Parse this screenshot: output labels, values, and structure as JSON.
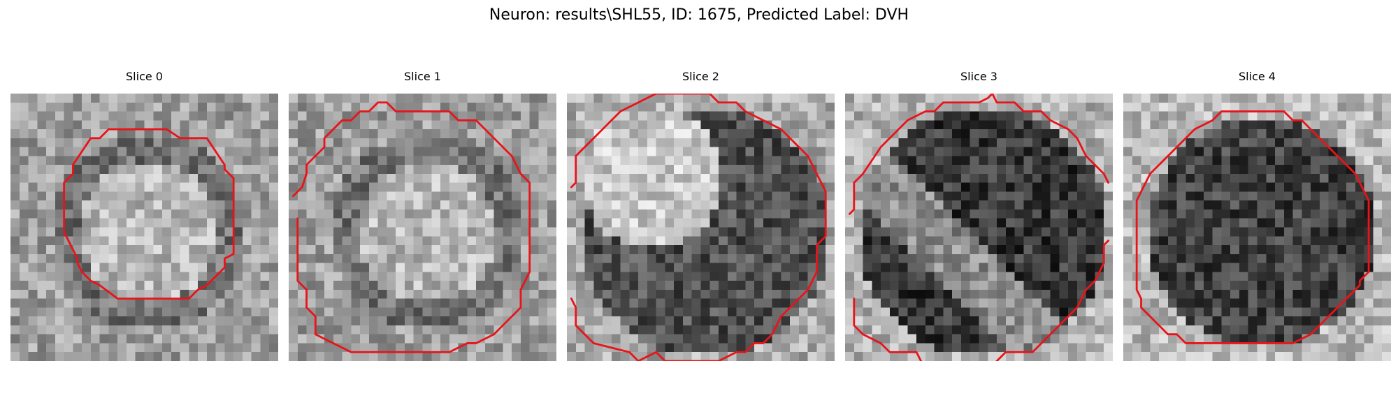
{
  "title": "Neuron: results\\SHL55, ID: 1675, Predicted Label: DVH",
  "slices": [
    {
      "title": "Slice 0",
      "tone": "bright-center",
      "seed": 11
    },
    {
      "title": "Slice 1",
      "tone": "bright-center",
      "seed": 23
    },
    {
      "title": "Slice 2",
      "tone": "bright-topleft",
      "seed": 37
    },
    {
      "title": "Slice 3",
      "tone": "dark-diagonal",
      "seed": 41
    },
    {
      "title": "Slice 4",
      "tone": "dark-center",
      "seed": 53
    }
  ],
  "colors": {
    "contour": "#e8141a",
    "background": "#ffffff"
  },
  "grid_size": 30
}
